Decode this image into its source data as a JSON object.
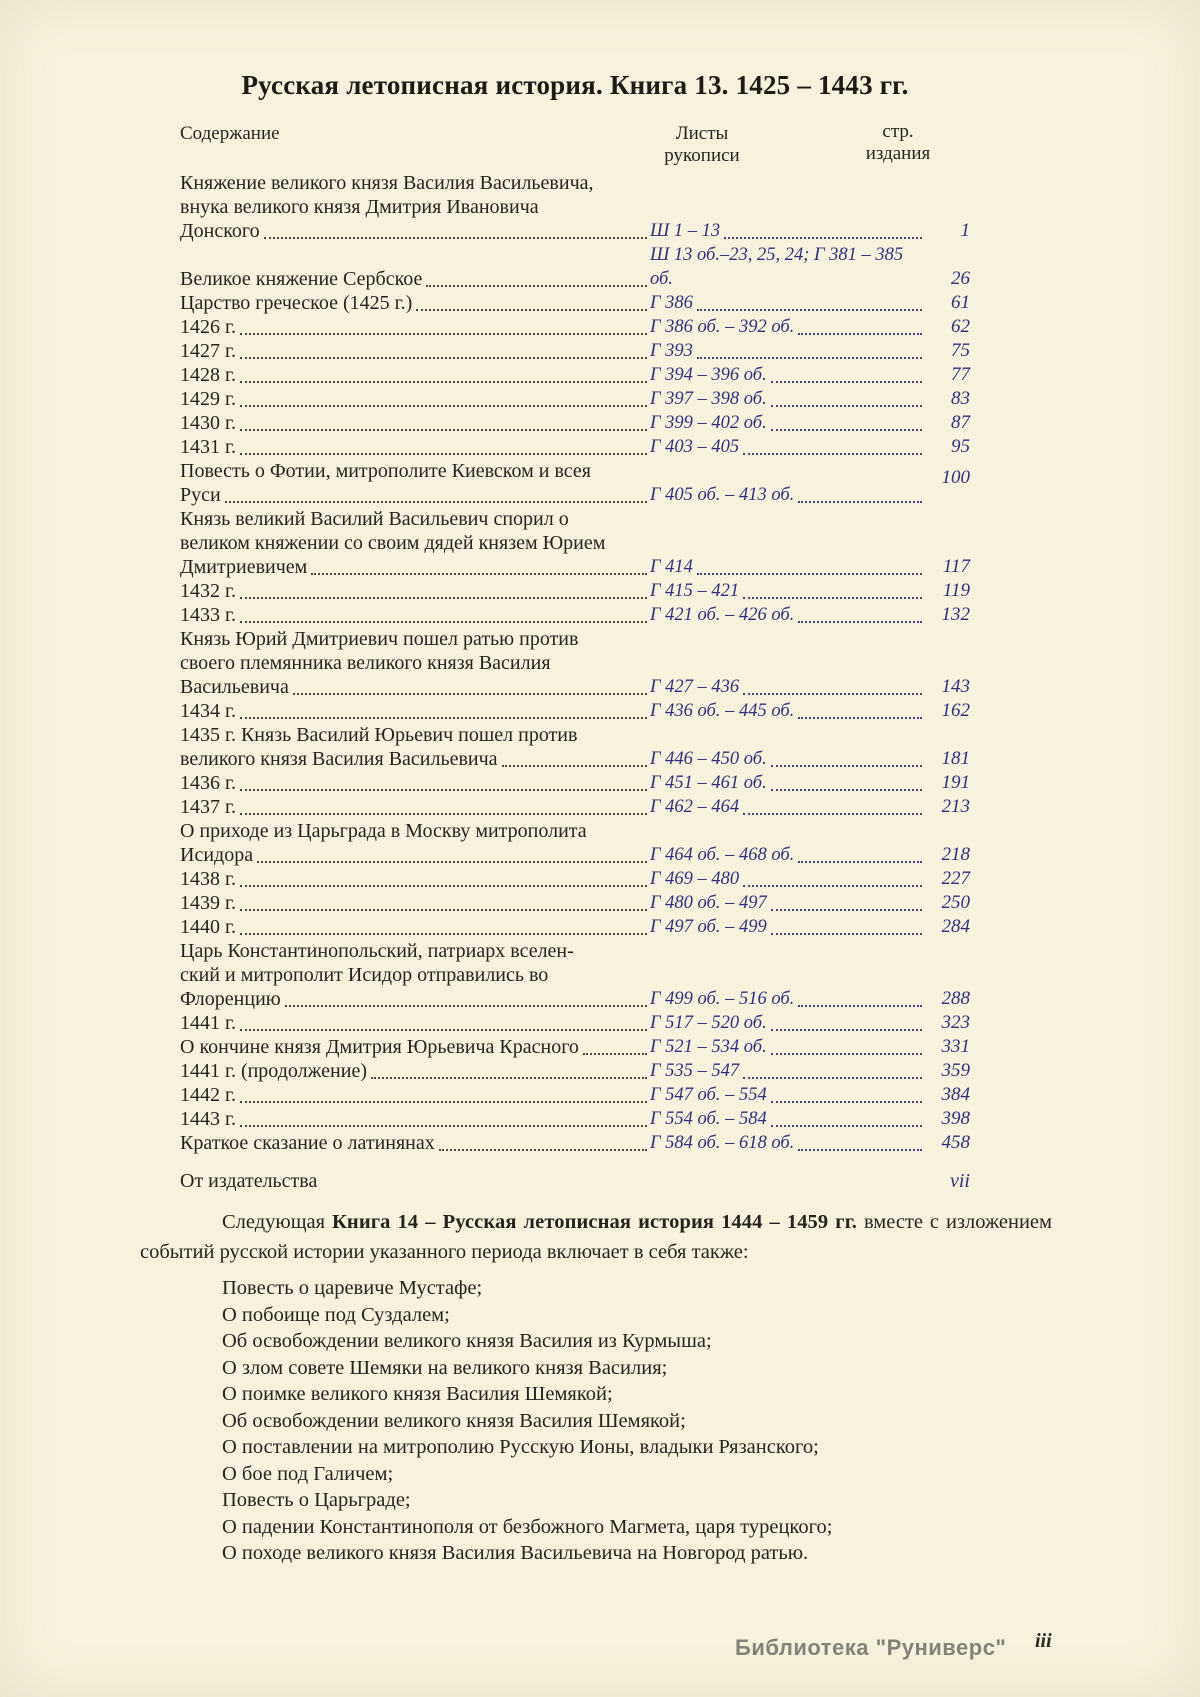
{
  "page": {
    "title": "Русская летописная история. Книга 13. 1425 – 1443 гг.",
    "footer_library": "Библиотека \"Руниверс\"",
    "footer_page_number": "iii"
  },
  "colors": {
    "background": "#f7f2dd",
    "body_text": "#262420",
    "reference_ink": "#30307f",
    "watermark_gray": "#84837b"
  },
  "toc": {
    "headers": {
      "content": "Содержание",
      "sheets_line1": "Листы",
      "sheets_line2": "рукописи",
      "page_line1": "стр.",
      "page_line2": "издания"
    },
    "rows": [
      {
        "content_lines": [
          "Княжение великого князя Василия Васильевича,",
          "внука великого князя Дмитрия Ивановича",
          "Донского"
        ],
        "sheets": "Ш 1 – 13",
        "sheets_dots": true,
        "page": "1"
      },
      {
        "content_lines": [
          "Великое княжение Сербское"
        ],
        "sheets": "Ш 13 об.–23, 25, 24; Г 381 – 385 об.",
        "sheets_dots": false,
        "page": "26"
      },
      {
        "content_lines": [
          "Царство греческое (1425 г.)"
        ],
        "sheets": "Г 386",
        "sheets_dots": true,
        "page": "61"
      },
      {
        "content_lines": [
          "1426 г."
        ],
        "sheets": "Г 386 об. – 392 об.",
        "sheets_dots": true,
        "page": "62"
      },
      {
        "content_lines": [
          "1427 г."
        ],
        "sheets": "Г 393",
        "sheets_dots": true,
        "page": "75"
      },
      {
        "content_lines": [
          "1428 г."
        ],
        "sheets": "Г 394 – 396 об.",
        "sheets_dots": true,
        "page": "77"
      },
      {
        "content_lines": [
          "1429 г."
        ],
        "sheets": "Г 397 – 398 об.",
        "sheets_dots": true,
        "page": "83"
      },
      {
        "content_lines": [
          "1430 г."
        ],
        "sheets": "Г 399 – 402 об.",
        "sheets_dots": true,
        "page": "87"
      },
      {
        "content_lines": [
          "1431 г."
        ],
        "sheets": "Г 403 – 405",
        "sheets_dots": true,
        "page": "95"
      },
      {
        "content_lines": [
          "Повесть о Фотии, митрополите Киевском и всея",
          "Руси"
        ],
        "sheets": "Г 405 об. – 413 об.",
        "sheets_dots": true,
        "page": "100",
        "page_valign": "center"
      },
      {
        "content_lines": [
          "Князь великий Василий Васильевич спорил о",
          "великом княжении со своим дядей князем Юрием",
          "Дмитриевичем"
        ],
        "sheets": "Г 414",
        "sheets_dots": true,
        "page": "117"
      },
      {
        "content_lines": [
          "1432 г."
        ],
        "sheets": "Г 415 – 421",
        "sheets_dots": true,
        "page": "119"
      },
      {
        "content_lines": [
          "1433 г."
        ],
        "sheets": "Г 421 об. – 426 об.",
        "sheets_dots": true,
        "page": "132"
      },
      {
        "content_lines": [
          "Князь Юрий Дмитриевич пошел ратью против",
          "своего племянника великого князя Василия",
          "Васильевича"
        ],
        "sheets": "Г 427 – 436",
        "sheets_dots": true,
        "page": "143"
      },
      {
        "content_lines": [
          "1434 г."
        ],
        "sheets": "Г 436 об. – 445 об.",
        "sheets_dots": true,
        "page": "162"
      },
      {
        "content_lines": [
          "1435 г. Князь Василий Юрьевич пошел против",
          "великого князя Василия Васильевича"
        ],
        "sheets": "Г 446 – 450 об.",
        "sheets_dots": true,
        "page": "181"
      },
      {
        "content_lines": [
          "1436 г."
        ],
        "sheets": "Г 451 – 461 об.",
        "sheets_dots": true,
        "page": "191"
      },
      {
        "content_lines": [
          "1437 г."
        ],
        "sheets": "Г 462 – 464",
        "sheets_dots": true,
        "page": "213"
      },
      {
        "content_lines": [
          "О приходе из Царьграда в Москву митрополита",
          "Исидора"
        ],
        "sheets": "Г 464 об. – 468 об.",
        "sheets_dots": true,
        "page": "218"
      },
      {
        "content_lines": [
          "1438 г."
        ],
        "sheets": "Г 469 – 480",
        "sheets_dots": true,
        "page": "227"
      },
      {
        "content_lines": [
          "1439 г."
        ],
        "sheets": "Г 480 об. – 497",
        "sheets_dots": true,
        "page": "250"
      },
      {
        "content_lines": [
          "1440 г."
        ],
        "sheets": "Г 497 об. – 499",
        "sheets_dots": true,
        "page": "284"
      },
      {
        "content_lines": [
          "Царь Константинопольский, патриарх вселен-",
          "ский и митрополит Исидор отправились во",
          "Флоренцию"
        ],
        "sheets": "Г 499 об. – 516 об.",
        "sheets_dots": true,
        "page": "288"
      },
      {
        "content_lines": [
          "1441 г."
        ],
        "sheets": "Г 517 – 520 об.",
        "sheets_dots": true,
        "page": "323"
      },
      {
        "content_lines": [
          "О кончине князя Дмитрия Юрьевича Красного"
        ],
        "sheets": "Г 521 – 534 об.",
        "sheets_dots": true,
        "page": "331"
      },
      {
        "content_lines": [
          "1441 г. (продолжение)"
        ],
        "sheets": "Г 535 – 547",
        "sheets_dots": true,
        "page": "359"
      },
      {
        "content_lines": [
          "1442 г."
        ],
        "sheets": "Г 547 об. – 554",
        "sheets_dots": true,
        "page": "384"
      },
      {
        "content_lines": [
          "1443 г."
        ],
        "sheets": "Г 554 об. – 584",
        "sheets_dots": true,
        "page": "398"
      },
      {
        "content_lines": [
          "Краткое сказание о латинянах"
        ],
        "sheets": "Г 584 об. – 618 об.",
        "sheets_dots": true,
        "page": "458"
      }
    ],
    "publisher_note": {
      "label": "От  издательства",
      "page": "vii"
    }
  },
  "next_book": {
    "intro_prefix": "Следующая ",
    "intro_bold": "Книга 14 – Русская летописная история 1444 – 1459 гг.",
    "intro_suffix": " вместе с изложением событий русской истории указанного периода включает в себя также:",
    "items": [
      "Повесть о царевиче Мустафе;",
      "О побоище под Суздалем;",
      "Об освобождении великого князя Василия из Курмыша;",
      "О злом совете Шемяки на великого князя Василия;",
      "О поимке великого князя Василия Шемякой;",
      "Об освобождении великого князя Василия Шемякой;",
      "О поставлении на митрополию Русскую Ионы, владыки Рязанского;",
      "О бое под Галичем;",
      "Повесть о Царьграде;",
      "О падении Константинополя от безбожного Магмета, царя турецкого;",
      "О походе великого князя Василия Васильевича на Новгород ратью."
    ]
  }
}
